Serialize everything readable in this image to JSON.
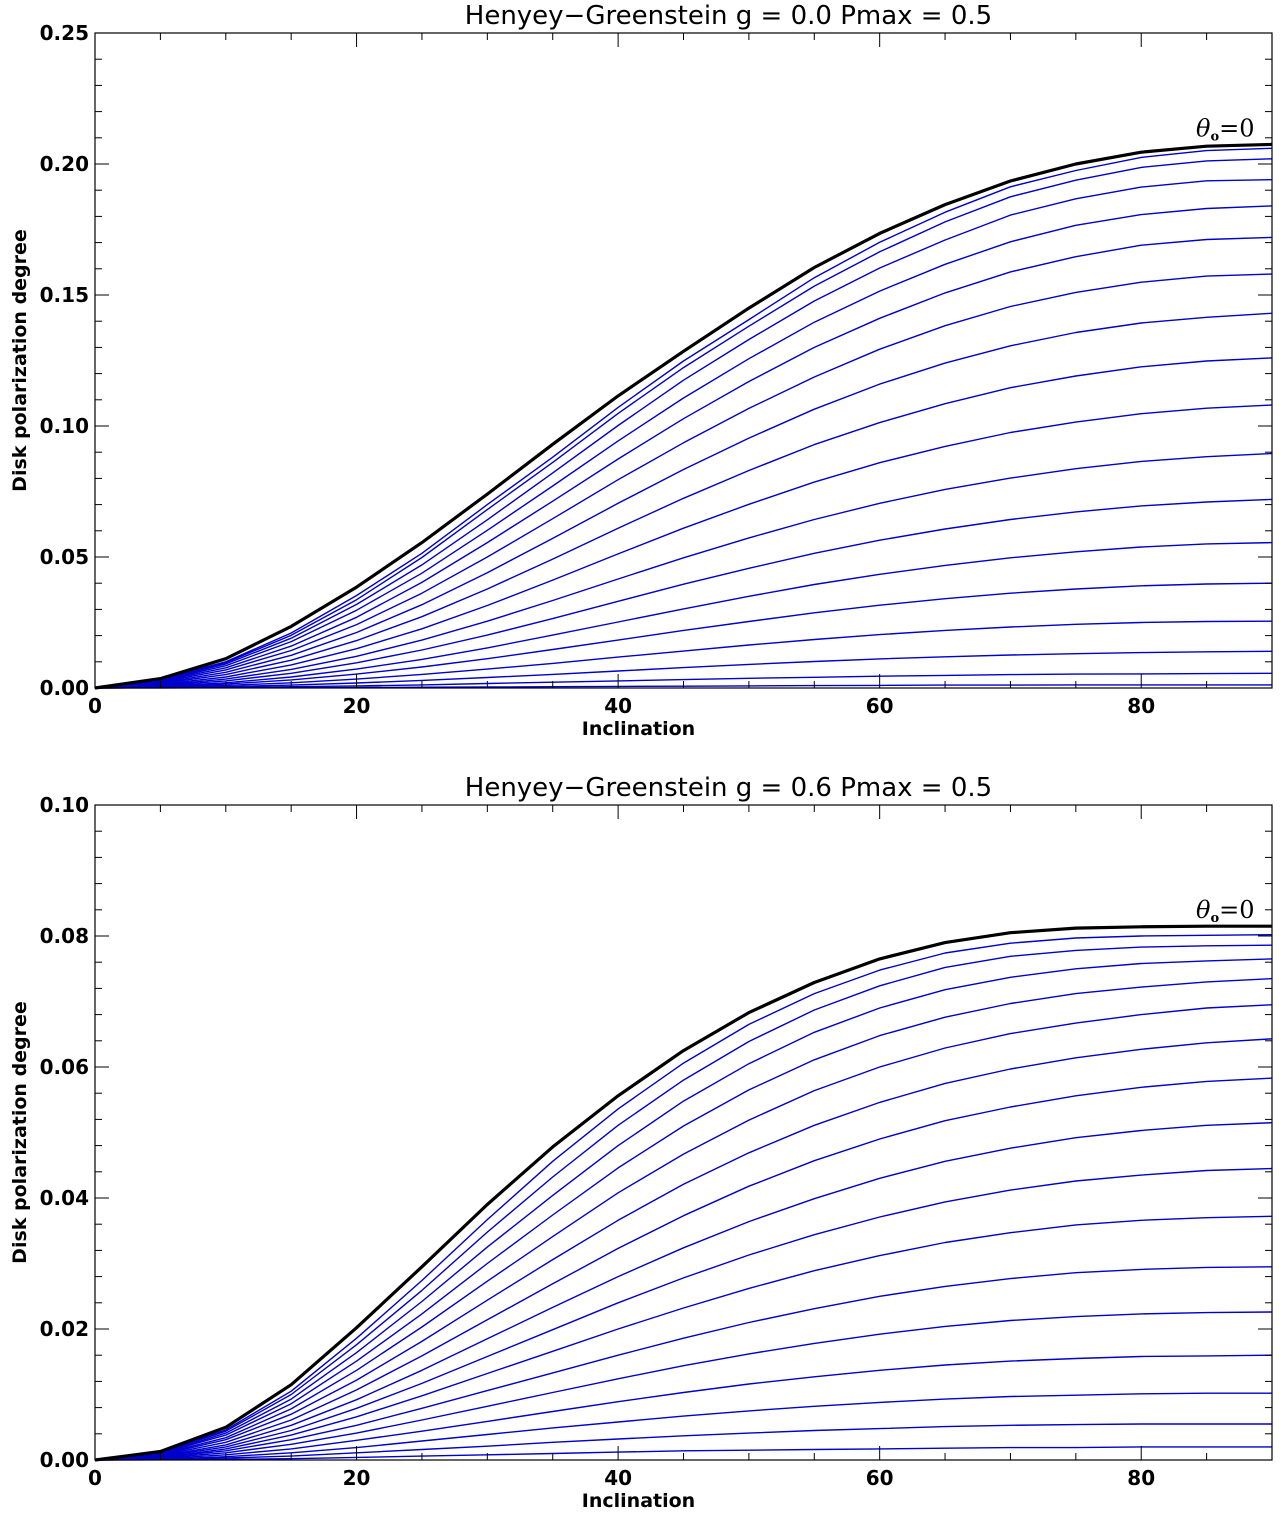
{
  "chart_data": [
    {
      "type": "line",
      "title": "Henyey−Greenstein  g = 0.0   Pmax = 0.5",
      "xlabel": "Inclination",
      "ylabel": "Disk polarization degree",
      "xlim": [
        0,
        90
      ],
      "ylim": [
        0,
        0.25
      ],
      "xticks": [
        "0",
        "20",
        "40",
        "60",
        "80"
      ],
      "yticks": [
        "0.00",
        "0.05",
        "0.10",
        "0.15",
        "0.20",
        "0.25"
      ],
      "annotation": {
        "text": "θ",
        "sub": "o",
        "tail": "=0"
      },
      "thick_color": "#000000",
      "thin_color": "#0000cc",
      "x": [
        0,
        5,
        10,
        15,
        20,
        25,
        30,
        35,
        40,
        45,
        50,
        55,
        60,
        65,
        70,
        75,
        80,
        85,
        90
      ],
      "series": [
        {
          "values": [
            0,
            0.0036,
            0.0112,
            0.0235,
            0.0385,
            0.0555,
            0.074,
            0.093,
            0.1115,
            0.1285,
            0.145,
            0.1605,
            0.1735,
            0.1845,
            0.1935,
            0.2,
            0.2045,
            0.2068,
            0.2075
          ],
          "thick": true
        },
        {
          "values": [
            0,
            0.0034,
            0.01,
            0.021,
            0.0353,
            0.0514,
            0.07,
            0.0881,
            0.1071,
            0.1248,
            0.1406,
            0.1566,
            0.1701,
            0.1816,
            0.1913,
            0.1975,
            0.2025,
            0.2051,
            0.206
          ]
        },
        {
          "values": [
            0,
            0.0032,
            0.0097,
            0.0201,
            0.0337,
            0.0498,
            0.0681,
            0.0861,
            0.1048,
            0.1223,
            0.1381,
            0.1534,
            0.1665,
            0.1779,
            0.1875,
            0.1938,
            0.1987,
            0.2012,
            0.202
          ]
        },
        {
          "values": [
            0,
            0.003,
            0.0092,
            0.019,
            0.0319,
            0.047,
            0.0642,
            0.0821,
            0.1002,
            0.1175,
            0.133,
            0.1477,
            0.1603,
            0.171,
            0.1805,
            0.1867,
            0.1912,
            0.1936,
            0.194
          ]
        },
        {
          "values": [
            0,
            0.0028,
            0.0085,
            0.0177,
            0.0297,
            0.0438,
            0.0602,
            0.0771,
            0.0943,
            0.1107,
            0.1257,
            0.1396,
            0.1515,
            0.1617,
            0.1703,
            0.1766,
            0.1807,
            0.183,
            0.184
          ]
        },
        {
          "values": [
            0,
            0.0026,
            0.0077,
            0.016,
            0.027,
            0.0403,
            0.0555,
            0.0713,
            0.0874,
            0.1028,
            0.117,
            0.13,
            0.1411,
            0.1508,
            0.1588,
            0.1646,
            0.169,
            0.1712,
            0.172
          ]
        },
        {
          "values": [
            0,
            0.0023,
            0.0069,
            0.0143,
            0.0242,
            0.0362,
            0.05,
            0.0646,
            0.0795,
            0.0936,
            0.1067,
            0.1187,
            0.1293,
            0.1383,
            0.1456,
            0.151,
            0.1549,
            0.1572,
            0.158
          ]
        },
        {
          "values": [
            0,
            0.002,
            0.006,
            0.0125,
            0.0212,
            0.0318,
            0.044,
            0.0571,
            0.0705,
            0.0834,
            0.0954,
            0.1064,
            0.116,
            0.124,
            0.1306,
            0.1357,
            0.1393,
            0.1415,
            0.143
          ]
        },
        {
          "values": [
            0,
            0.0017,
            0.0051,
            0.0106,
            0.0181,
            0.0272,
            0.0378,
            0.0492,
            0.061,
            0.0724,
            0.083,
            0.0929,
            0.1013,
            0.1085,
            0.1146,
            0.1191,
            0.1226,
            0.1248,
            0.126
          ]
        },
        {
          "values": [
            0,
            0.0014,
            0.0042,
            0.0088,
            0.015,
            0.0226,
            0.0315,
            0.0412,
            0.0512,
            0.061,
            0.0701,
            0.0786,
            0.086,
            0.0922,
            0.0975,
            0.1015,
            0.1047,
            0.1068,
            0.108
          ]
        },
        {
          "values": [
            0,
            0.0011,
            0.0034,
            0.0071,
            0.0121,
            0.0183,
            0.0255,
            0.0334,
            0.0416,
            0.0497,
            0.0573,
            0.0643,
            0.0705,
            0.0758,
            0.0801,
            0.0837,
            0.0865,
            0.0883,
            0.0895
          ]
        },
        {
          "values": [
            0,
            0.0009,
            0.0027,
            0.0056,
            0.0096,
            0.0145,
            0.0202,
            0.0265,
            0.0331,
            0.0396,
            0.0457,
            0.0514,
            0.0564,
            0.0607,
            0.0643,
            0.0672,
            0.0695,
            0.071,
            0.072
          ]
        },
        {
          "values": [
            0,
            0.0007,
            0.002,
            0.0042,
            0.0072,
            0.0109,
            0.0153,
            0.0202,
            0.0252,
            0.0302,
            0.035,
            0.0395,
            0.0434,
            0.0468,
            0.0497,
            0.052,
            0.0538,
            0.055,
            0.0555
          ]
        },
        {
          "values": [
            0,
            0.0005,
            0.0015,
            0.0031,
            0.0053,
            0.008,
            0.0112,
            0.0147,
            0.0183,
            0.022,
            0.0254,
            0.0287,
            0.0316,
            0.0341,
            0.0362,
            0.0378,
            0.039,
            0.0397,
            0.04
          ]
        },
        {
          "values": [
            0,
            0.0003,
            0.001,
            0.002,
            0.0034,
            0.0052,
            0.0072,
            0.0094,
            0.0118,
            0.0141,
            0.0164,
            0.0185,
            0.0204,
            0.022,
            0.0233,
            0.0243,
            0.025,
            0.0254,
            0.0255
          ]
        },
        {
          "values": [
            0,
            0.0002,
            0.0005,
            0.0011,
            0.0019,
            0.0029,
            0.004,
            0.0052,
            0.0065,
            0.0078,
            0.009,
            0.0101,
            0.0111,
            0.0119,
            0.0126,
            0.0131,
            0.0135,
            0.0138,
            0.014
          ]
        },
        {
          "values": [
            0,
            0.0001,
            0.0002,
            0.0005,
            0.0008,
            0.0012,
            0.0017,
            0.0022,
            0.0027,
            0.0032,
            0.0037,
            0.0041,
            0.0045,
            0.0048,
            0.0051,
            0.0053,
            0.0054,
            0.0055,
            0.0056
          ]
        },
        {
          "values": [
            0,
            3e-05,
            0.0001,
            0.0001,
            0.0002,
            0.0003,
            0.0004,
            0.0005,
            0.0006,
            0.0007,
            0.0008,
            0.0009,
            0.001,
            0.0011,
            0.0011,
            0.0012,
            0.0012,
            0.0012,
            0.0012
          ]
        }
      ]
    },
    {
      "type": "line",
      "title": "Henyey−Greenstein  g = 0.6   Pmax = 0.5",
      "xlabel": "Inclination",
      "ylabel": "Disk polarization degree",
      "xlim": [
        0,
        90
      ],
      "ylim": [
        0,
        0.1
      ],
      "xticks": [
        "0",
        "20",
        "40",
        "60",
        "80"
      ],
      "yticks": [
        "0.00",
        "0.02",
        "0.04",
        "0.06",
        "0.08",
        "0.10"
      ],
      "annotation": {
        "text": "θ",
        "sub": "o",
        "tail": "=0"
      },
      "thick_color": "#000000",
      "thin_color": "#0000cc",
      "x": [
        0,
        5,
        10,
        15,
        20,
        25,
        30,
        35,
        40,
        45,
        50,
        55,
        60,
        65,
        70,
        75,
        80,
        85,
        90
      ],
      "series": [
        {
          "values": [
            0,
            0.0013,
            0.005,
            0.0115,
            0.0202,
            0.0295,
            0.039,
            0.0478,
            0.0556,
            0.0625,
            0.0683,
            0.0729,
            0.0765,
            0.079,
            0.0805,
            0.0812,
            0.0814,
            0.0815,
            0.0815
          ],
          "thick": true
        },
        {
          "values": [
            0,
            0.0012,
            0.0046,
            0.0105,
            0.0186,
            0.0274,
            0.0367,
            0.0456,
            0.0536,
            0.0606,
            0.0665,
            0.0712,
            0.0748,
            0.0774,
            0.0789,
            0.0797,
            0.08,
            0.0801,
            0.0802
          ]
        },
        {
          "values": [
            0,
            0.0011,
            0.0044,
            0.01,
            0.0176,
            0.0259,
            0.0348,
            0.0432,
            0.0511,
            0.058,
            0.0639,
            0.0687,
            0.0724,
            0.0752,
            0.0769,
            0.0778,
            0.0783,
            0.0785,
            0.0786
          ]
        },
        {
          "values": [
            0,
            0.001,
            0.0041,
            0.0093,
            0.0164,
            0.0242,
            0.0325,
            0.0404,
            0.048,
            0.0548,
            0.0605,
            0.0653,
            0.069,
            0.0718,
            0.0737,
            0.075,
            0.0758,
            0.0762,
            0.0765
          ]
        },
        {
          "values": [
            0,
            0.001,
            0.0038,
            0.0086,
            0.0151,
            0.0223,
            0.03,
            0.0374,
            0.0446,
            0.051,
            0.0565,
            0.0611,
            0.0648,
            0.0676,
            0.0697,
            0.0712,
            0.0722,
            0.073,
            0.0735
          ]
        },
        {
          "values": [
            0,
            0.0009,
            0.0034,
            0.0078,
            0.0137,
            0.0203,
            0.0273,
            0.0341,
            0.0408,
            0.0467,
            0.0519,
            0.0564,
            0.06,
            0.0629,
            0.0651,
            0.0667,
            0.068,
            0.069,
            0.0695
          ]
        },
        {
          "values": [
            0,
            0.0008,
            0.0031,
            0.007,
            0.0122,
            0.0181,
            0.0244,
            0.0306,
            0.0366,
            0.0421,
            0.0469,
            0.0511,
            0.0546,
            0.0575,
            0.0597,
            0.0614,
            0.0627,
            0.0637,
            0.0643
          ]
        },
        {
          "values": [
            0,
            0.0007,
            0.0027,
            0.0061,
            0.0107,
            0.0159,
            0.0214,
            0.0269,
            0.0323,
            0.0373,
            0.0418,
            0.0457,
            0.049,
            0.0518,
            0.0539,
            0.0556,
            0.0569,
            0.0578,
            0.0583
          ]
        },
        {
          "values": [
            0,
            0.0006,
            0.0023,
            0.0053,
            0.0092,
            0.0137,
            0.0185,
            0.0233,
            0.028,
            0.0324,
            0.0364,
            0.0399,
            0.043,
            0.0456,
            0.0476,
            0.0492,
            0.0503,
            0.0511,
            0.0515
          ]
        },
        {
          "values": [
            0,
            0.0005,
            0.002,
            0.0045,
            0.0079,
            0.0117,
            0.0158,
            0.0199,
            0.024,
            0.0278,
            0.0313,
            0.0344,
            0.0371,
            0.0394,
            0.0412,
            0.0426,
            0.0435,
            0.0442,
            0.0445
          ]
        },
        {
          "values": [
            0,
            0.0004,
            0.0017,
            0.0038,
            0.0066,
            0.0098,
            0.0132,
            0.0166,
            0.02,
            0.0232,
            0.0262,
            0.0289,
            0.0312,
            0.0332,
            0.0347,
            0.0359,
            0.0366,
            0.037,
            0.0372
          ]
        },
        {
          "values": [
            0,
            0.0004,
            0.0014,
            0.0031,
            0.0053,
            0.0079,
            0.0106,
            0.0133,
            0.016,
            0.0186,
            0.021,
            0.0231,
            0.025,
            0.0265,
            0.0277,
            0.0286,
            0.0291,
            0.0294,
            0.0295
          ]
        },
        {
          "values": [
            0,
            0.0003,
            0.0011,
            0.0024,
            0.0041,
            0.0061,
            0.0082,
            0.0103,
            0.0124,
            0.0144,
            0.0162,
            0.0178,
            0.0192,
            0.0204,
            0.0213,
            0.0219,
            0.0223,
            0.0225,
            0.0226
          ]
        },
        {
          "values": [
            0,
            0.0002,
            0.0008,
            0.0017,
            0.003,
            0.0044,
            0.0059,
            0.0074,
            0.0089,
            0.0103,
            0.0116,
            0.0127,
            0.0137,
            0.0145,
            0.0151,
            0.0155,
            0.0158,
            0.0159,
            0.016
          ]
        },
        {
          "values": [
            0,
            0.0001,
            0.0005,
            0.0011,
            0.0019,
            0.0029,
            0.0039,
            0.0049,
            0.0058,
            0.0067,
            0.0075,
            0.0082,
            0.0088,
            0.0093,
            0.0097,
            0.0099,
            0.0101,
            0.0102,
            0.0102
          ]
        },
        {
          "values": [
            0,
            0.0001,
            0.0003,
            0.0006,
            0.0011,
            0.0016,
            0.0021,
            0.0027,
            0.0032,
            0.0037,
            0.0041,
            0.0045,
            0.0048,
            0.0051,
            0.0053,
            0.0054,
            0.0055,
            0.0055,
            0.0055
          ]
        },
        {
          "values": [
            0,
            3e-05,
            0.0001,
            0.0002,
            0.0004,
            0.0006,
            0.0008,
            0.001,
            0.0012,
            0.0014,
            0.0015,
            0.0016,
            0.0017,
            0.0018,
            0.0019,
            0.0019,
            0.002,
            0.002,
            0.002
          ]
        }
      ]
    }
  ]
}
